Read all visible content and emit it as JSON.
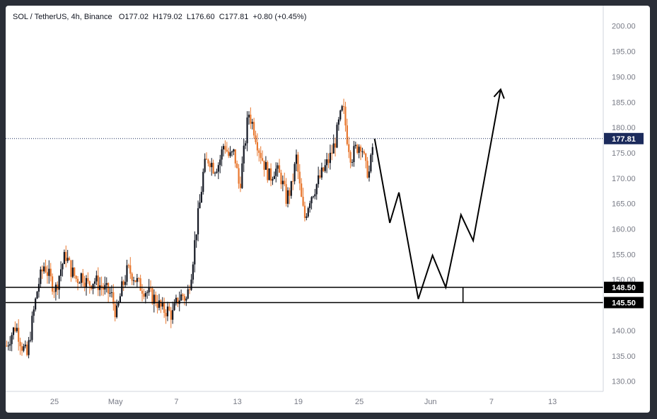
{
  "header": {
    "symbol": "SOL / TetherUS, 4h, Binance",
    "o_label": "O",
    "o_value": "177.02",
    "h_label": "H",
    "h_value": "179.02",
    "l_label": "L",
    "l_value": "176.60",
    "c_label": "C",
    "c_value": "177.81",
    "change": "+0.80 (+0.45%)"
  },
  "chart_data": {
    "type": "candlestick",
    "ylim": [
      128,
      204
    ],
    "y_ticks": [
      "200.00",
      "195.00",
      "190.00",
      "185.00",
      "180.00",
      "175.00",
      "170.00",
      "165.00",
      "160.00",
      "155.00",
      "150.00",
      "140.00",
      "135.00",
      "130.00"
    ],
    "x_ticks": [
      "25",
      "May",
      "7",
      "13",
      "19",
      "25",
      "Jun",
      "7",
      "13"
    ],
    "x_tick_days": [
      -6,
      0,
      6,
      12,
      18,
      24,
      31,
      37,
      43
    ],
    "x_domain_days": [
      -10.8,
      48
    ],
    "last_price": {
      "label": "177.81",
      "value": 177.81,
      "color": "#1c2b5c"
    },
    "levels": [
      {
        "label": "148.50",
        "value": 148.5
      },
      {
        "label": "145.50",
        "value": 145.5
      }
    ],
    "projection": [
      [
        25.5,
        177.8
      ],
      [
        27,
        161.2
      ],
      [
        27.9,
        167.2
      ],
      [
        29.8,
        146.2
      ],
      [
        31.2,
        154.8
      ],
      [
        32.5,
        148.5
      ],
      [
        34,
        162.8
      ],
      [
        35.2,
        157.7
      ],
      [
        37.9,
        187.5
      ]
    ],
    "marker_day": 34.2,
    "candle_anchors": [
      [
        -10.7,
        137
      ],
      [
        -10.3,
        139
      ],
      [
        -9.8,
        141
      ],
      [
        -9.2,
        137
      ],
      [
        -8.7,
        135
      ],
      [
        -8.1,
        143
      ],
      [
        -7.6,
        149
      ],
      [
        -7.0,
        153
      ],
      [
        -6.4,
        150
      ],
      [
        -5.9,
        148
      ],
      [
        -5.4,
        152
      ],
      [
        -4.9,
        155
      ],
      [
        -4.4,
        152
      ],
      [
        -3.8,
        150
      ],
      [
        -3.3,
        151
      ],
      [
        -2.7,
        149
      ],
      [
        -2.1,
        150
      ],
      [
        -1.6,
        149
      ],
      [
        -1.0,
        148
      ],
      [
        -0.4,
        147
      ],
      [
        0.1,
        143
      ],
      [
        0.6,
        148
      ],
      [
        1.2,
        152
      ],
      [
        1.7,
        151
      ],
      [
        2.3,
        149
      ],
      [
        2.9,
        148
      ],
      [
        3.4,
        147
      ],
      [
        4.0,
        146
      ],
      [
        4.6,
        144
      ],
      [
        5.1,
        144
      ],
      [
        5.6,
        143
      ],
      [
        6.1,
        146
      ],
      [
        6.6,
        147
      ],
      [
        7.0,
        146
      ],
      [
        7.5,
        152
      ],
      [
        7.9,
        159
      ],
      [
        8.3,
        165
      ],
      [
        8.7,
        172
      ],
      [
        9.2,
        174
      ],
      [
        9.7,
        172
      ],
      [
        10.2,
        173
      ],
      [
        10.7,
        177
      ],
      [
        11.2,
        174
      ],
      [
        11.7,
        175
      ],
      [
        12.2,
        168
      ],
      [
        12.7,
        176
      ],
      [
        13.1,
        183
      ],
      [
        13.6,
        180
      ],
      [
        14.1,
        176
      ],
      [
        14.6,
        173
      ],
      [
        15.2,
        170
      ],
      [
        15.7,
        172
      ],
      [
        16.3,
        170
      ],
      [
        16.8,
        166
      ],
      [
        17.3,
        168
      ],
      [
        17.8,
        174
      ],
      [
        18.2,
        167
      ],
      [
        18.6,
        162
      ],
      [
        19.1,
        166
      ],
      [
        19.6,
        168
      ],
      [
        20.1,
        170
      ],
      [
        20.6,
        172
      ],
      [
        21.1,
        174
      ],
      [
        21.6,
        177
      ],
      [
        22.0,
        181
      ],
      [
        22.4,
        184
      ],
      [
        22.8,
        178
      ],
      [
        23.2,
        174
      ],
      [
        23.7,
        176
      ],
      [
        24.2,
        177
      ],
      [
        24.6,
        172
      ],
      [
        25.0,
        171
      ],
      [
        25.4,
        177.8
      ]
    ]
  }
}
